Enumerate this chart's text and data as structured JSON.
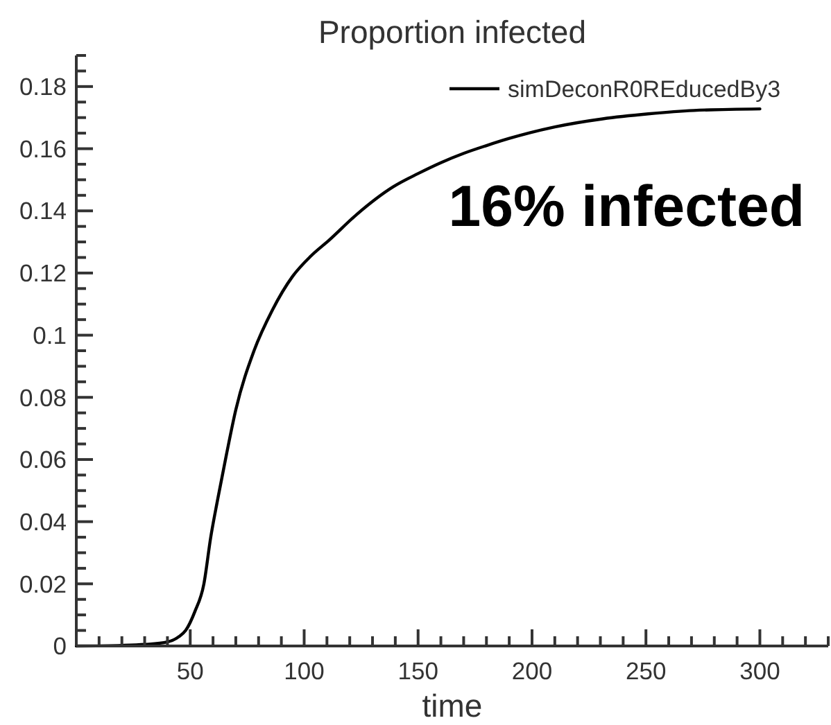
{
  "chart_data": {
    "type": "line",
    "title": "Proportion infected",
    "xlabel": "time",
    "x": [
      0,
      20,
      30,
      40,
      45,
      48,
      52,
      56,
      59,
      62,
      66,
      70,
      78,
      86,
      95,
      103,
      111,
      123,
      139,
      150,
      160,
      170,
      180,
      190,
      210,
      231,
      251,
      271,
      300
    ],
    "series": [
      {
        "name": "simDeconR0REducedBy3",
        "color": "#000000",
        "values": [
          0,
          0.0002,
          0.0005,
          0.0013,
          0.003,
          0.005,
          0.011,
          0.02,
          0.035,
          0.047,
          0.062,
          0.076,
          0.095,
          0.108,
          0.119,
          0.1255,
          0.1306,
          0.1388,
          0.1477,
          0.152,
          0.1555,
          0.1585,
          0.161,
          0.1633,
          0.167,
          0.1696,
          0.1712,
          0.1723,
          0.1728
        ]
      }
    ],
    "xlim": [
      0,
      330
    ],
    "xticks": [
      {
        "value": 10,
        "label": null
      },
      {
        "value": 20,
        "label": null
      },
      {
        "value": 30,
        "label": null
      },
      {
        "value": 40,
        "label": null
      },
      50,
      {
        "value": 60,
        "label": null
      },
      {
        "value": 70,
        "label": null
      },
      {
        "value": 80,
        "label": null
      },
      {
        "value": 90,
        "label": null
      },
      100,
      {
        "value": 110,
        "label": null
      },
      {
        "value": 120,
        "label": null
      },
      {
        "value": 130,
        "label": null
      },
      {
        "value": 140,
        "label": null
      },
      150,
      {
        "value": 160,
        "label": null
      },
      {
        "value": 170,
        "label": null
      },
      {
        "value": 180,
        "label": null
      },
      {
        "value": 190,
        "label": null
      },
      200,
      {
        "value": 210,
        "label": null
      },
      {
        "value": 220,
        "label": null
      },
      {
        "value": 230,
        "label": null
      },
      {
        "value": 240,
        "label": null
      },
      250,
      {
        "value": 260,
        "label": null
      },
      {
        "value": 270,
        "label": null
      },
      {
        "value": 280,
        "label": null
      },
      {
        "value": 290,
        "label": null
      },
      300,
      {
        "value": 310,
        "label": null
      },
      {
        "value": 320,
        "label": null
      },
      {
        "value": 330,
        "label": null
      }
    ],
    "ylim": [
      0,
      0.19
    ],
    "yticks": [
      0,
      {
        "value": 0.005,
        "label": null
      },
      {
        "value": 0.01,
        "label": null
      },
      {
        "value": 0.015,
        "label": null
      },
      0.02,
      {
        "value": 0.025,
        "label": null
      },
      {
        "value": 0.03,
        "label": null
      },
      {
        "value": 0.035,
        "label": null
      },
      0.04,
      {
        "value": 0.045,
        "label": null
      },
      {
        "value": 0.05,
        "label": null
      },
      {
        "value": 0.055,
        "label": null
      },
      0.06,
      {
        "value": 0.065,
        "label": null
      },
      {
        "value": 0.07,
        "label": null
      },
      {
        "value": 0.075,
        "label": null
      },
      0.08,
      {
        "value": 0.085,
        "label": null
      },
      {
        "value": 0.09,
        "label": null
      },
      {
        "value": 0.095,
        "label": null
      },
      0.1,
      {
        "value": 0.105,
        "label": null
      },
      {
        "value": 0.11,
        "label": null
      },
      {
        "value": 0.115,
        "label": null
      },
      0.12,
      {
        "value": 0.125,
        "label": null
      },
      {
        "value": 0.13,
        "label": null
      },
      {
        "value": 0.135,
        "label": null
      },
      0.14,
      {
        "value": 0.145,
        "label": null
      },
      {
        "value": 0.15,
        "label": null
      },
      {
        "value": 0.155,
        "label": null
      },
      0.16,
      {
        "value": 0.165,
        "label": null
      },
      {
        "value": 0.17,
        "label": null
      },
      {
        "value": 0.175,
        "label": null
      },
      0.18,
      {
        "value": 0.185,
        "label": null
      },
      {
        "value": 0.19,
        "label": null
      }
    ],
    "legend": "top right",
    "line_style": "solid",
    "annotations": [
      "16% infected"
    ]
  }
}
